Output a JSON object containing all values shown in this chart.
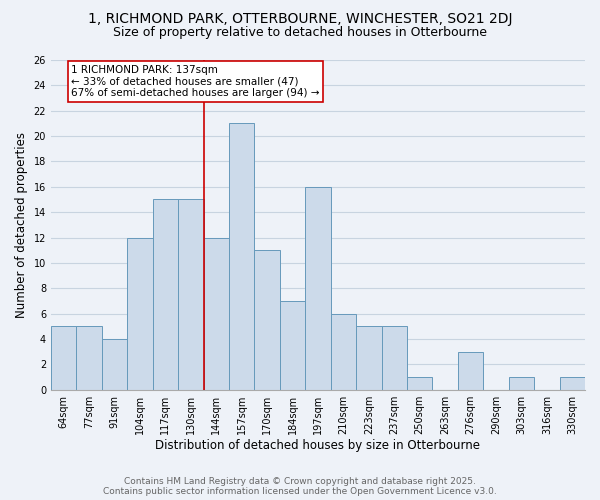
{
  "title": "1, RICHMOND PARK, OTTERBOURNE, WINCHESTER, SO21 2DJ",
  "subtitle": "Size of property relative to detached houses in Otterbourne",
  "xlabel": "Distribution of detached houses by size in Otterbourne",
  "ylabel": "Number of detached properties",
  "footer_line1": "Contains HM Land Registry data © Crown copyright and database right 2025.",
  "footer_line2": "Contains public sector information licensed under the Open Government Licence v3.0.",
  "categories": [
    "64sqm",
    "77sqm",
    "91sqm",
    "104sqm",
    "117sqm",
    "130sqm",
    "144sqm",
    "157sqm",
    "170sqm",
    "184sqm",
    "197sqm",
    "210sqm",
    "223sqm",
    "237sqm",
    "250sqm",
    "263sqm",
    "276sqm",
    "290sqm",
    "303sqm",
    "316sqm",
    "330sqm"
  ],
  "values": [
    5,
    5,
    4,
    12,
    15,
    15,
    12,
    21,
    11,
    7,
    16,
    6,
    5,
    5,
    1,
    0,
    3,
    0,
    1,
    0,
    1
  ],
  "bar_color": "#ccdaea",
  "bar_edge_color": "#6699bb",
  "annotation_line1": "1 RICHMOND PARK: 137sqm",
  "annotation_line2": "← 33% of detached houses are smaller (47)",
  "annotation_line3": "67% of semi-detached houses are larger (94) →",
  "annotation_box_color": "#ffffff",
  "annotation_box_edge": "#cc0000",
  "property_line_color": "#cc0000",
  "property_line_x": 5.5,
  "ylim": [
    0,
    26
  ],
  "yticks": [
    0,
    2,
    4,
    6,
    8,
    10,
    12,
    14,
    16,
    18,
    20,
    22,
    24,
    26
  ],
  "background_color": "#eef2f8",
  "grid_color": "#c8d4e0",
  "title_fontsize": 10,
  "subtitle_fontsize": 9,
  "axis_label_fontsize": 8.5,
  "tick_fontsize": 7,
  "annotation_fontsize": 7.5,
  "footer_fontsize": 6.5
}
